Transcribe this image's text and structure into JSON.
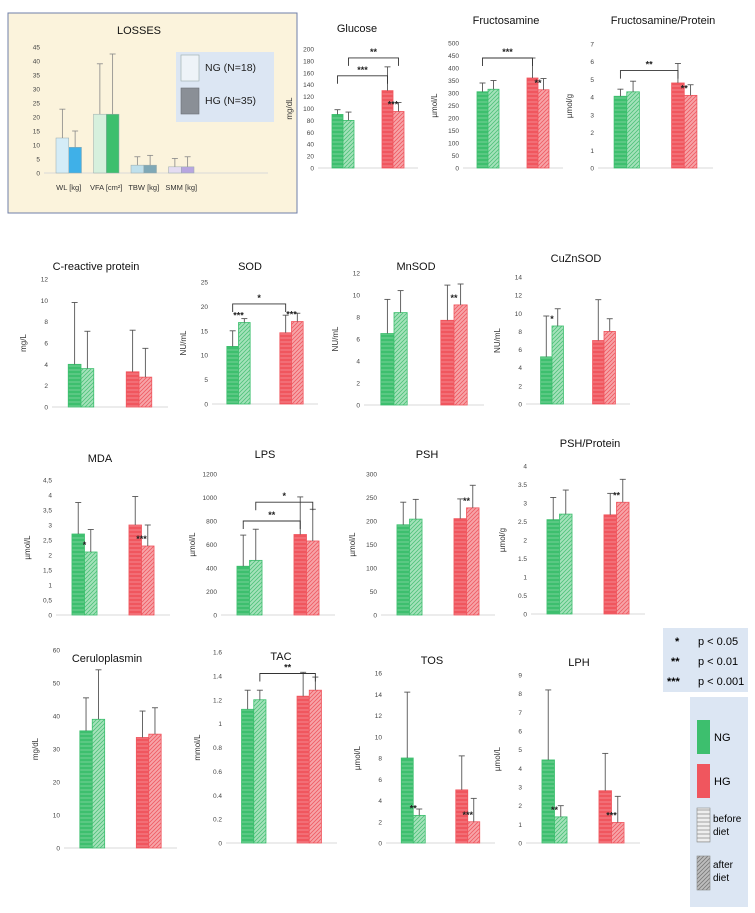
{
  "colors": {
    "ng": "#3dbf6e",
    "ng_light": "#a5e2bb",
    "hg": "#f0565e",
    "hg_light": "#f7a4a8",
    "wl_before": "#d4ecf7",
    "wl_after": "#3fb0e8",
    "vfa_before": "#d6f0dd",
    "vfa_after": "#3dbf6e",
    "tbw_before": "#bfe0ec",
    "tbw_after": "#7fa8b6",
    "smm_before": "#e4dcf2",
    "smm_after": "#b7a6e0",
    "losses_bg": "#fbf3dc",
    "losses_border": "#6f7fa8",
    "legend_bg": "#dce6f3"
  },
  "losses_panel": {
    "title": "LOSSES",
    "legend": [
      {
        "label": "NG (N=18)"
      },
      {
        "label": "HG (N=35)"
      }
    ]
  },
  "significance_legend": [
    {
      "stars": "*",
      "text": "p < 0.05"
    },
    {
      "stars": "**",
      "text": "p < 0.01"
    },
    {
      "stars": "***",
      "text": "p < 0.001"
    }
  ],
  "group_legend": [
    {
      "key": "ng",
      "label": "NG"
    },
    {
      "key": "hg",
      "label": "HG"
    },
    {
      "key": "before",
      "label": "before diet"
    },
    {
      "key": "after",
      "label": "after diet"
    }
  ],
  "chart_data": [
    {
      "id": "losses",
      "type": "bar",
      "title": "LOSSES",
      "categories": [
        "WL [kg]",
        "VFA [cm²]",
        "TBW [kg]",
        "SMM [kg]"
      ],
      "series": [
        {
          "name": "NG (N=18)",
          "values": [
            12.5,
            21,
            2.8,
            2.2
          ],
          "errors": [
            10.3,
            18,
            3,
            3
          ]
        },
        {
          "name": "HG (N=35)",
          "values": [
            9.2,
            21,
            2.8,
            2.2
          ],
          "errors": [
            5.8,
            21.5,
            3.5,
            3.6
          ]
        }
      ],
      "ylim": [
        0,
        45
      ],
      "yticks": [
        0,
        5,
        10,
        15,
        20,
        25,
        30,
        35,
        40,
        45
      ],
      "ylabel": ""
    },
    {
      "id": "glucose",
      "type": "bar",
      "title": "Glucose",
      "ylabel": "mg/dL",
      "ylim": [
        0,
        200
      ],
      "yticks": [
        0,
        20,
        40,
        60,
        80,
        100,
        120,
        140,
        160,
        180,
        200
      ],
      "values": [
        [
          90,
          80
        ],
        [
          130,
          95
        ]
      ],
      "errors": [
        [
          8,
          14
        ],
        [
          40,
          15
        ]
      ],
      "stars": [
        {
          "g": 1,
          "text": "***"
        }
      ],
      "brackets": [
        {
          "a": [
            0,
            0
          ],
          "b": [
            1,
            0
          ],
          "y": 155,
          "text": "***"
        },
        {
          "a": [
            0,
            1
          ],
          "b": [
            1,
            1
          ],
          "y": 185,
          "text": "**"
        }
      ]
    },
    {
      "id": "fructosamine",
      "type": "bar",
      "title": "Fructosamine",
      "ylabel": "µmol/L",
      "ylim": [
        0,
        500
      ],
      "yticks": [
        0,
        50,
        100,
        150,
        200,
        250,
        300,
        350,
        400,
        450,
        500
      ],
      "values": [
        [
          305,
          315
        ],
        [
          360,
          313
        ]
      ],
      "errors": [
        [
          35,
          35
        ],
        [
          80,
          45
        ]
      ],
      "stars": [
        {
          "g": 1,
          "text": "**"
        }
      ],
      "brackets": [
        {
          "a": [
            0,
            0
          ],
          "b": [
            1,
            0
          ],
          "y": 440,
          "text": "***"
        }
      ]
    },
    {
      "id": "fructosamine_protein",
      "type": "bar",
      "title": "Fructosamine/Protein",
      "ylabel": "µmol/g",
      "ylim": [
        0,
        7
      ],
      "yticks": [
        0,
        1,
        2,
        3,
        4,
        5,
        6,
        7
      ],
      "values": [
        [
          4.05,
          4.3
        ],
        [
          4.8,
          4.1
        ]
      ],
      "errors": [
        [
          0.4,
          0.6
        ],
        [
          1.1,
          0.6
        ]
      ],
      "stars": [
        {
          "g": 1,
          "text": "**"
        }
      ],
      "brackets": [
        {
          "a": [
            0,
            0
          ],
          "b": [
            1,
            0
          ],
          "y": 5.5,
          "text": "**"
        }
      ]
    },
    {
      "id": "crp",
      "type": "bar",
      "title": "C-reactive protein",
      "ylabel": "mg/L",
      "ylim": [
        0,
        12
      ],
      "yticks": [
        0,
        2,
        4,
        6,
        8,
        10,
        12
      ],
      "values": [
        [
          4,
          3.6
        ],
        [
          3.3,
          2.8
        ]
      ],
      "errors": [
        [
          5.8,
          3.5
        ],
        [
          3.9,
          2.7
        ]
      ],
      "stars": [],
      "brackets": []
    },
    {
      "id": "sod",
      "type": "bar",
      "title": "SOD",
      "ylabel": "NU/mL",
      "ylim": [
        0,
        25
      ],
      "yticks": [
        0,
        5,
        10,
        15,
        20,
        25
      ],
      "values": [
        [
          11.8,
          16.7
        ],
        [
          14.6,
          16.9
        ]
      ],
      "errors": [
        [
          3.2,
          0.8
        ],
        [
          3.6,
          1.7
        ]
      ],
      "stars": [
        {
          "g": 0,
          "text": "***"
        },
        {
          "g": 1,
          "text": "***"
        }
      ],
      "brackets": [
        {
          "a": [
            0,
            0
          ],
          "b": [
            1,
            0
          ],
          "y": 20.5,
          "text": "*"
        }
      ]
    },
    {
      "id": "mnsod",
      "type": "bar",
      "title": "MnSOD",
      "ylabel": "NU/mL",
      "ylim": [
        0,
        12
      ],
      "yticks": [
        0,
        2,
        4,
        6,
        8,
        10,
        12
      ],
      "values": [
        [
          6.5,
          8.4
        ],
        [
          7.7,
          9.1
        ]
      ],
      "errors": [
        [
          3.1,
          2
        ],
        [
          3.2,
          1.9
        ]
      ],
      "stars": [
        {
          "g": 1,
          "text": "**"
        }
      ],
      "brackets": []
    },
    {
      "id": "cuznsod",
      "type": "bar",
      "title": "CuZnSOD",
      "ylabel": "NU/mL",
      "ylim": [
        0,
        14
      ],
      "yticks": [
        0,
        2,
        4,
        6,
        8,
        10,
        12,
        14
      ],
      "values": [
        [
          5.2,
          8.6
        ],
        [
          7,
          8
        ]
      ],
      "errors": [
        [
          4.5,
          1.9
        ],
        [
          4.5,
          1.4
        ]
      ],
      "stars": [
        {
          "g": 0,
          "text": "*"
        }
      ],
      "brackets": []
    },
    {
      "id": "mda",
      "type": "bar",
      "title": "MDA",
      "ylabel": "µmol/L",
      "ylim": [
        0,
        4.5
      ],
      "yticks": [
        0,
        0.5,
        1,
        1.5,
        2,
        2.5,
        3,
        3.5,
        4,
        4.5
      ],
      "ytick_labels": [
        "0",
        "0,5",
        "1",
        "1,5",
        "2",
        "2,5",
        "3",
        "3,5",
        "4",
        "4,5"
      ],
      "values": [
        [
          2.7,
          2.1
        ],
        [
          3,
          2.3
        ]
      ],
      "errors": [
        [
          1.05,
          0.75
        ],
        [
          0.95,
          0.7
        ]
      ],
      "stars": [
        {
          "g": 0,
          "text": "*"
        },
        {
          "g": 1,
          "text": "***"
        }
      ],
      "brackets": []
    },
    {
      "id": "lps",
      "type": "bar",
      "title": "LPS",
      "ylabel": "µmol/L",
      "ylim": [
        0,
        1200
      ],
      "yticks": [
        0,
        200,
        400,
        600,
        800,
        1000,
        1200
      ],
      "values": [
        [
          415,
          465
        ],
        [
          685,
          630
        ]
      ],
      "errors": [
        [
          265,
          265
        ],
        [
          320,
          270
        ]
      ],
      "stars": [],
      "brackets": [
        {
          "a": [
            0,
            0
          ],
          "b": [
            1,
            0
          ],
          "y": 800,
          "text": "**"
        },
        {
          "a": [
            0,
            1
          ],
          "b": [
            1,
            1
          ],
          "y": 960,
          "text": "*"
        }
      ]
    },
    {
      "id": "psh",
      "type": "bar",
      "title": "PSH",
      "ylabel": "µmol/L",
      "ylim": [
        0,
        300
      ],
      "yticks": [
        0,
        50,
        100,
        150,
        200,
        250,
        300
      ],
      "values": [
        [
          192,
          204
        ],
        [
          205,
          228
        ]
      ],
      "errors": [
        [
          48,
          42
        ],
        [
          42,
          48
        ]
      ],
      "stars": [
        {
          "g": 1,
          "text": "**"
        }
      ],
      "brackets": []
    },
    {
      "id": "psh_protein",
      "type": "bar",
      "title": "PSH/Protein",
      "ylabel": "µmol/g",
      "ylim": [
        0,
        4
      ],
      "yticks": [
        0,
        0.5,
        1,
        1.5,
        2,
        2.5,
        3,
        3.5,
        4
      ],
      "values": [
        [
          2.55,
          2.7
        ],
        [
          2.68,
          3.02
        ]
      ],
      "errors": [
        [
          0.6,
          0.65
        ],
        [
          0.58,
          0.62
        ]
      ],
      "stars": [
        {
          "g": 1,
          "text": "**"
        }
      ],
      "brackets": []
    },
    {
      "id": "ceruloplasmin",
      "type": "bar",
      "title": "Ceruloplasmin",
      "ylabel": "mg/dL",
      "ylim": [
        0,
        60
      ],
      "yticks": [
        0,
        10,
        20,
        30,
        40,
        50,
        60
      ],
      "values": [
        [
          35.5,
          39
        ],
        [
          33.5,
          34.5
        ]
      ],
      "errors": [
        [
          10,
          15
        ],
        [
          8,
          8
        ]
      ],
      "stars": [],
      "brackets": []
    },
    {
      "id": "tac",
      "type": "bar",
      "title": "TAC",
      "ylabel": "mmol/L",
      "ylim": [
        0,
        1.6
      ],
      "yticks": [
        0,
        0.2,
        0.4,
        0.6,
        0.8,
        1,
        1.2,
        1.4,
        1.6
      ],
      "values": [
        [
          1.12,
          1.2
        ],
        [
          1.23,
          1.28
        ]
      ],
      "errors": [
        [
          0.16,
          0.08
        ],
        [
          0.2,
          0.11
        ]
      ],
      "stars": [],
      "brackets": [
        {
          "a": [
            0,
            1
          ],
          "b": [
            1,
            1
          ],
          "y": 1.42,
          "text": "**"
        }
      ]
    },
    {
      "id": "tos",
      "type": "bar",
      "title": "TOS",
      "ylabel": "µmol/L",
      "ylim": [
        0,
        16
      ],
      "yticks": [
        0,
        2,
        4,
        6,
        8,
        10,
        12,
        14,
        16
      ],
      "values": [
        [
          8,
          2.6
        ],
        [
          5,
          2
        ]
      ],
      "errors": [
        [
          6.2,
          0.6
        ],
        [
          3.2,
          2.2
        ]
      ],
      "stars": [
        {
          "g": 0,
          "text": "**"
        },
        {
          "g": 1,
          "text": "***"
        }
      ],
      "brackets": []
    },
    {
      "id": "lph",
      "type": "bar",
      "title": "LPH",
      "ylabel": "µmol/L",
      "ylim": [
        0,
        9
      ],
      "yticks": [
        0,
        1,
        2,
        3,
        4,
        5,
        6,
        7,
        8,
        9
      ],
      "values": [
        [
          4.45,
          1.4
        ],
        [
          2.8,
          1.1
        ]
      ],
      "errors": [
        [
          3.75,
          0.6
        ],
        [
          2,
          1.4
        ]
      ],
      "stars": [
        {
          "g": 0,
          "text": "**"
        },
        {
          "g": 1,
          "text": "***"
        }
      ],
      "brackets": []
    }
  ]
}
